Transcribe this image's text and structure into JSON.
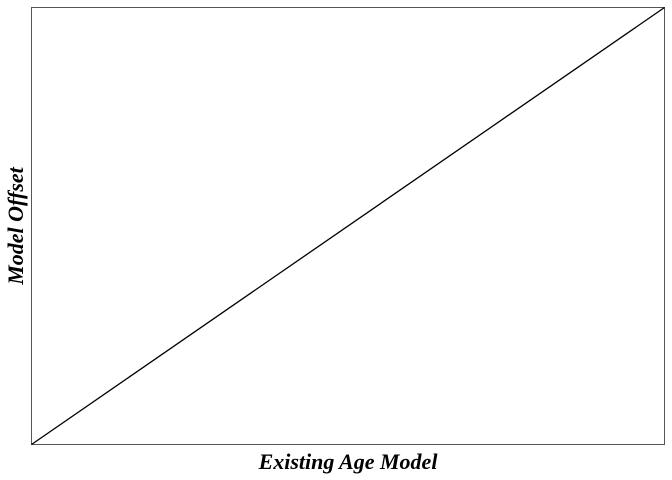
{
  "chart_data": {
    "type": "line",
    "title": "",
    "xlabel": "Existing Age Model",
    "ylabel": "Model Offset",
    "xlim": [
      0,
      1
    ],
    "ylim": [
      0,
      1
    ],
    "grid": false,
    "ticks_shown": false,
    "series": [
      {
        "x": [
          0,
          1
        ],
        "y": [
          0,
          1
        ]
      }
    ]
  },
  "colors": {
    "line": "#000000",
    "frame": "#555555",
    "background": "#ffffff"
  }
}
